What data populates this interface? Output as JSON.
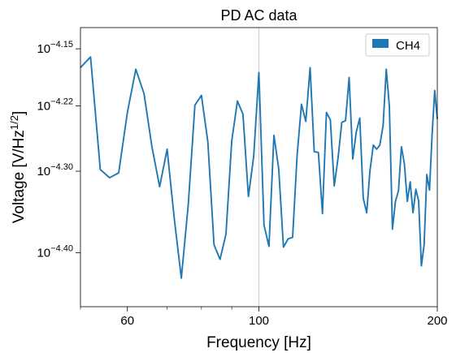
{
  "chart_data": {
    "type": "line",
    "title": "PD AC data",
    "xlabel": "Frequency [Hz]",
    "ylabel": "Voltage [V/Hz^1/2]",
    "ylabel_parts": {
      "base": "Voltage [V/Hz",
      "sup": "1/2",
      "close": "]"
    },
    "xscale": "log",
    "yscale": "log",
    "xlim": [
      50,
      200
    ],
    "ylim_log10": [
      -4.466,
      -4.124
    ],
    "x_major_ticks": [
      {
        "value": 60,
        "label": "60"
      },
      {
        "value": 100,
        "label": "100"
      },
      {
        "value": 200,
        "label": "200"
      }
    ],
    "x_minor_ticks": [
      50,
      70,
      80,
      90
    ],
    "y_ticks": [
      {
        "exp": -4.15,
        "base": "10",
        "sup": "−4.15"
      },
      {
        "exp": -4.22,
        "base": "10",
        "sup": "−4.22"
      },
      {
        "exp": -4.3,
        "base": "10",
        "sup": "−4.30"
      },
      {
        "exp": -4.4,
        "base": "10",
        "sup": "−4.40"
      }
    ],
    "x_gridlines": [
      100
    ],
    "legend": {
      "placement": "top-right",
      "entries": [
        "CH4"
      ]
    },
    "series": [
      {
        "name": "CH4",
        "color": "#1f77b4",
        "x": [
          50.0,
          52.0,
          54.0,
          56.0,
          58.0,
          60.0,
          62.0,
          64.0,
          66.0,
          68.0,
          70.0,
          72.0,
          74.0,
          76.0,
          78.0,
          80.0,
          82.0,
          84.0,
          86.0,
          88.0,
          90.0,
          92.0,
          94.0,
          96.0,
          98.0,
          100.0,
          102.0,
          104.0,
          106.0,
          108.0,
          110.0,
          112.0,
          114.0,
          116.0,
          118.0,
          120.0,
          122.0,
          124.0,
          126.0,
          128.0,
          130.0,
          132.0,
          134.0,
          136.0,
          138.0,
          140.0,
          142.0,
          144.0,
          146.0,
          148.0,
          150.0,
          152.0,
          154.0,
          156.0,
          158.0,
          160.0,
          162.0,
          164.0,
          166.0,
          168.0,
          170.0,
          172.0,
          174.0,
          176.0,
          178.0,
          180.0,
          182.0,
          184.0,
          186.0,
          188.0,
          190.0,
          192.0,
          194.0,
          196.0,
          198.0,
          200.0
        ],
        "y_log10": [
          -4.173,
          -4.16,
          -4.298,
          -4.308,
          -4.302,
          -4.228,
          -4.175,
          -4.205,
          -4.27,
          -4.319,
          -4.273,
          -4.359,
          -4.431,
          -4.341,
          -4.219,
          -4.207,
          -4.264,
          -4.39,
          -4.408,
          -4.377,
          -4.263,
          -4.214,
          -4.23,
          -4.331,
          -4.282,
          -4.179,
          -4.366,
          -4.392,
          -4.256,
          -4.297,
          -4.393,
          -4.383,
          -4.381,
          -4.281,
          -4.218,
          -4.239,
          -4.173,
          -4.276,
          -4.277,
          -4.352,
          -4.228,
          -4.237,
          -4.318,
          -4.284,
          -4.24,
          -4.238,
          -4.185,
          -4.285,
          -4.252,
          -4.235,
          -4.333,
          -4.351,
          -4.299,
          -4.268,
          -4.273,
          -4.268,
          -4.244,
          -4.175,
          -4.22,
          -4.371,
          -4.337,
          -4.324,
          -4.27,
          -4.291,
          -4.337,
          -4.313,
          -4.351,
          -4.322,
          -4.336,
          -4.416,
          -4.39,
          -4.304,
          -4.323,
          -4.255,
          -4.201,
          -4.236
        ]
      }
    ]
  }
}
